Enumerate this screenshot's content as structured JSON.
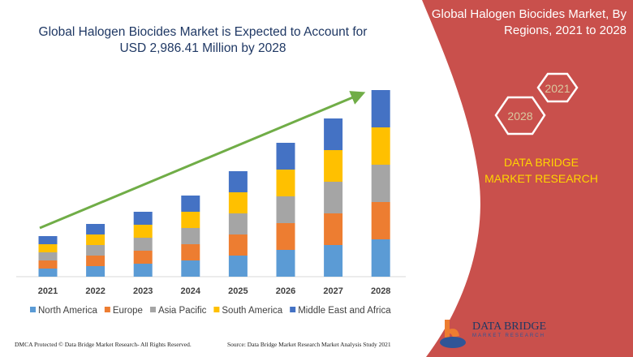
{
  "chart_data": {
    "type": "bar",
    "stacked": true,
    "title": "Global Halogen Biocides Market is Expected to Account for USD 2,986.41 Million by 2028",
    "categories": [
      "2021",
      "2022",
      "2023",
      "2024",
      "2025",
      "2026",
      "2027",
      "2028"
    ],
    "series": [
      {
        "name": "North America",
        "color": "#5b9bd5",
        "values": [
          10,
          13,
          16,
          20,
          26,
          33,
          39,
          46
        ]
      },
      {
        "name": "Europe",
        "color": "#ed7d31",
        "values": [
          10,
          13,
          16,
          20,
          26,
          33,
          39,
          46
        ]
      },
      {
        "name": "Asia Pacific",
        "color": "#a5a5a5",
        "values": [
          10,
          13,
          16,
          20,
          26,
          33,
          39,
          46
        ]
      },
      {
        "name": "South America",
        "color": "#ffc000",
        "values": [
          10,
          13,
          16,
          20,
          26,
          33,
          39,
          46
        ]
      },
      {
        "name": "Middle East and Africa",
        "color": "#4472c4",
        "values": [
          10,
          13,
          16,
          20,
          26,
          33,
          39,
          46
        ]
      }
    ],
    "ylim": [
      0,
      235
    ],
    "grid": false,
    "legend": "bottom",
    "trend_arrow_color": "#70ad47"
  },
  "side": {
    "title": "Global Halogen Biocides Market, By Regions, 2021 to 2028",
    "hex_1": "2021",
    "hex_2": "2028",
    "brand": "DATA BRIDGE MARKET RESEARCH",
    "panel_color": "#c9504c"
  },
  "logo": {
    "name": "DATA BRIDGE",
    "sub": "MARKET RESEARCH"
  },
  "footer": {
    "left": "DMCA Protected © Data Bridge Market Research- All Rights Reserved.",
    "right": "Source: Data Bridge Market Research Market Analysis Study 2021"
  }
}
